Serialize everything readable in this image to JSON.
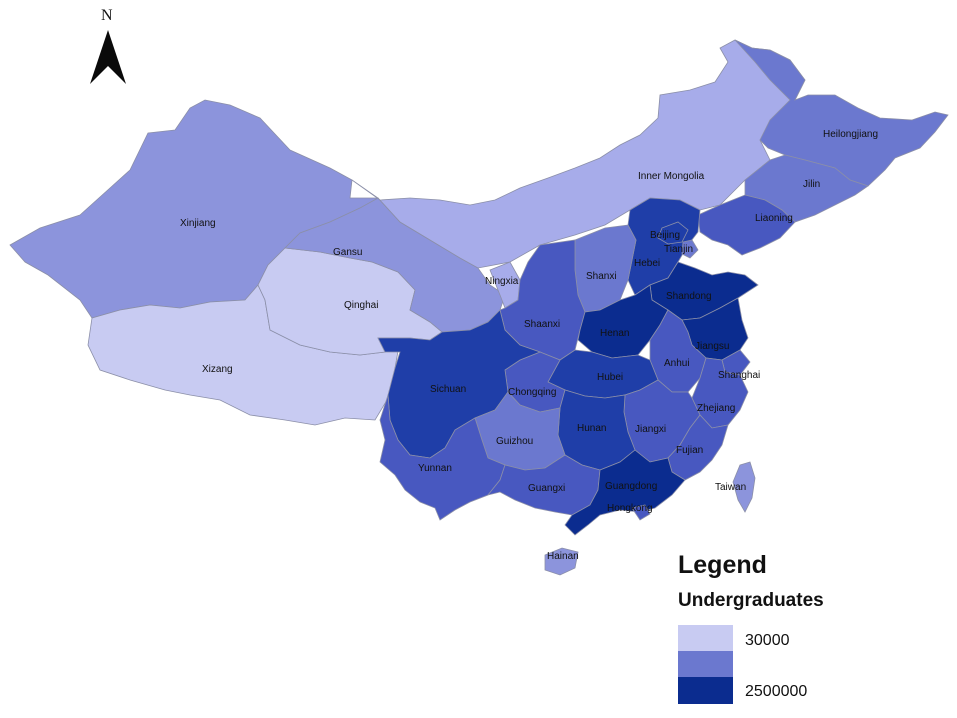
{
  "north_arrow": {
    "label": "N",
    "icon": "north-arrow-icon"
  },
  "legend": {
    "title": "Legend",
    "subtitle": "Undergraduates",
    "items": [
      {
        "label": "30000",
        "color": "#c8cbf2"
      },
      {
        "label": "",
        "color": "#6b78cf"
      },
      {
        "label": "2500000",
        "color": "#0b2c8f"
      }
    ]
  },
  "colors": {
    "c1": "#c8cbf2",
    "c2": "#a7acea",
    "c3": "#8c94dc",
    "c4": "#6b78cf",
    "c5": "#4858c0",
    "c6": "#1f3ea8",
    "c7": "#0b2c8f",
    "border": "#8b8fa8"
  },
  "provinces": [
    {
      "name": "Xinjiang",
      "label": "Xinjiang",
      "level": 3
    },
    {
      "name": "Xizang",
      "label": "Xizang",
      "level": 1
    },
    {
      "name": "Qinghai",
      "label": "Qinghai",
      "level": 1
    },
    {
      "name": "Gansu",
      "label": "Gansu",
      "level": 3
    },
    {
      "name": "Inner Mongolia",
      "label": "Inner Mongolia",
      "level": 2
    },
    {
      "name": "Heilongjiang",
      "label": "Heilongjiang",
      "level": 4
    },
    {
      "name": "Jilin",
      "label": "Jilin",
      "level": 4
    },
    {
      "name": "Liaoning",
      "label": "Liaoning",
      "level": 5
    },
    {
      "name": "Beijing",
      "label": "Beijing",
      "level": 6
    },
    {
      "name": "Tianjin",
      "label": "Tianjin",
      "level": 4
    },
    {
      "name": "Hebei",
      "label": "Hebei",
      "level": 6
    },
    {
      "name": "Shanxi",
      "label": "Shanxi",
      "level": 4
    },
    {
      "name": "Ningxia",
      "label": "Ningxia",
      "level": 2
    },
    {
      "name": "Shaanxi",
      "label": "Shaanxi",
      "level": 5
    },
    {
      "name": "Shandong",
      "label": "Shandong",
      "level": 7
    },
    {
      "name": "Henan",
      "label": "Henan",
      "level": 7
    },
    {
      "name": "Jiangsu",
      "label": "Jiangsu",
      "level": 7
    },
    {
      "name": "Shanghai",
      "label": "Shanghai",
      "level": 5
    },
    {
      "name": "Anhui",
      "label": "Anhui",
      "level": 5
    },
    {
      "name": "Hubei",
      "label": "Hubei",
      "level": 6
    },
    {
      "name": "Sichuan",
      "label": "Sichuan",
      "level": 6
    },
    {
      "name": "Chongqing",
      "label": "Chongqing",
      "level": 5
    },
    {
      "name": "Zhejiang",
      "label": "Zhejiang",
      "level": 5
    },
    {
      "name": "Hunan",
      "label": "Hunan",
      "level": 6
    },
    {
      "name": "Jiangxi",
      "label": "Jiangxi",
      "level": 5
    },
    {
      "name": "Guizhou",
      "label": "Guizhou",
      "level": 4
    },
    {
      "name": "Yunnan",
      "label": "Yunnan",
      "level": 5
    },
    {
      "name": "Fujian",
      "label": "Fujian",
      "level": 5
    },
    {
      "name": "Guangxi",
      "label": "Guangxi",
      "level": 5
    },
    {
      "name": "Guangdong",
      "label": "Guangdong",
      "level": 7
    },
    {
      "name": "Hongkong",
      "label": "Hongkong",
      "level": 5
    },
    {
      "name": "Taiwan",
      "label": "Taiwan",
      "level": 3
    },
    {
      "name": "Hainan",
      "label": "Hainan",
      "level": 3
    }
  ]
}
